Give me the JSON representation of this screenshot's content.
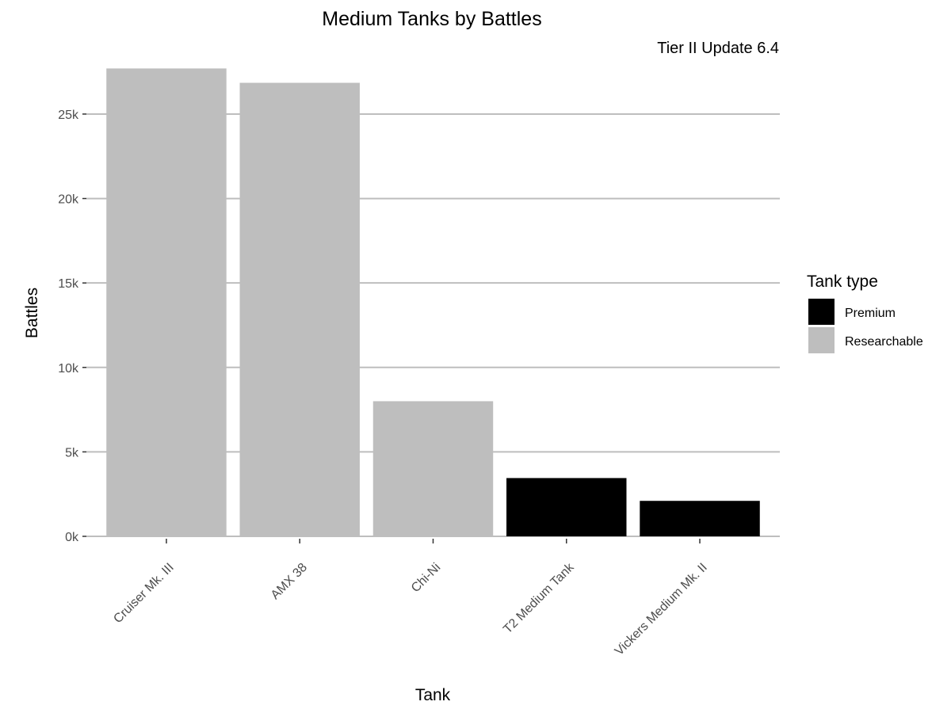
{
  "chart_data": {
    "type": "bar",
    "title": "Medium Tanks by Battles",
    "subtitle": "Tier II Update 6.4",
    "xlabel": "Tank",
    "ylabel": "Battles",
    "categories": [
      "Cruiser Mk. III",
      "AMX 38",
      "Chi-Ni",
      "T2 Medium Tank",
      "Vickers Medium Mk. II"
    ],
    "values": [
      27700,
      26850,
      8000,
      3450,
      2100
    ],
    "types": [
      "Researchable",
      "Researchable",
      "Researchable",
      "Premium",
      "Premium"
    ],
    "ylim": [
      0,
      28000
    ],
    "yticks": [
      0,
      5000,
      10000,
      15000,
      20000,
      25000
    ],
    "ytick_labels": [
      "0k",
      "5k",
      "10k",
      "15k",
      "20k",
      "25k"
    ],
    "grid": true,
    "legend": {
      "title": "Tank type",
      "position": "right",
      "entries": [
        {
          "label": "Premium",
          "color": "#000000"
        },
        {
          "label": "Researchable",
          "color": "#bebebe"
        }
      ]
    }
  }
}
